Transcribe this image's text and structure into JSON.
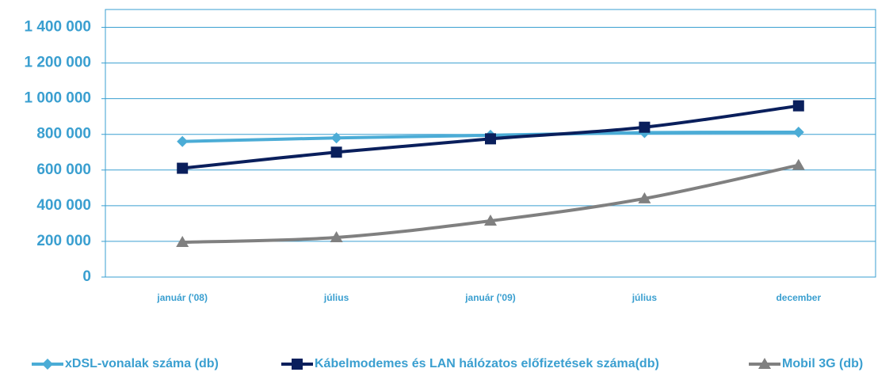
{
  "chart_data": {
    "type": "line",
    "categories": [
      "január ('08)",
      "július",
      "január ('09)",
      "július",
      "december"
    ],
    "series": [
      {
        "name": "xDSL-vonalak száma (db)",
        "color": "#4bacd6",
        "marker": "diamond",
        "values": [
          760000,
          780000,
          795000,
          810000,
          812000
        ]
      },
      {
        "name": "Kábelmodemes és LAN hálózatos előfizetések száma(db)",
        "color": "#0a1f5c",
        "marker": "square",
        "values": [
          610000,
          700000,
          775000,
          840000,
          960000
        ]
      },
      {
        "name": "Mobil 3G (db)",
        "color": "#808080",
        "marker": "triangle",
        "values": [
          195000,
          222000,
          315000,
          440000,
          627000
        ]
      }
    ],
    "ylim": [
      0,
      1500000
    ],
    "yticks": [
      0,
      {
        "value": 200000,
        "label": "200 000"
      },
      {
        "value": 400000,
        "label": "400 000"
      },
      {
        "value": 600000,
        "label": "600 000"
      },
      {
        "value": 800000,
        "label": "800 000"
      },
      {
        "value": 1000000,
        "label": "1 000 000"
      },
      {
        "value": 1200000,
        "label": "1 200 000"
      },
      {
        "value": 1400000,
        "label": "1 400 000"
      }
    ],
    "grid": true,
    "legend": "bottom"
  }
}
